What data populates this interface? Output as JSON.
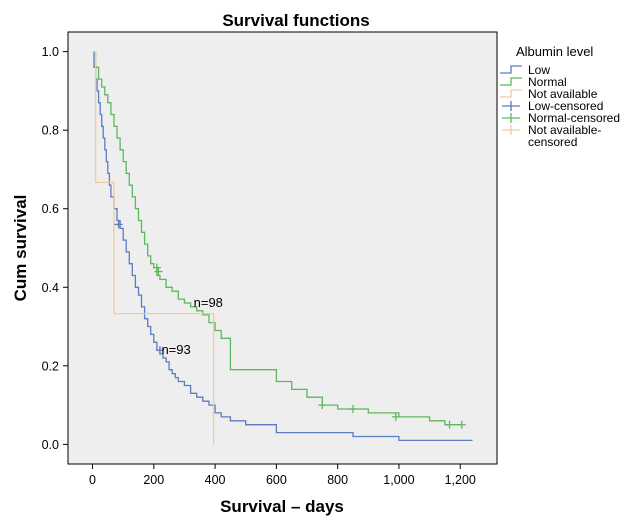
{
  "chart_data": {
    "type": "line",
    "title": "Survival functions",
    "xlabel": "Survival – days",
    "ylabel": "Cum survival",
    "xlim": [
      -80,
      1320
    ],
    "ylim": [
      -0.05,
      1.05
    ],
    "x_ticks": [
      0,
      200,
      400,
      600,
      800,
      1000,
      1200
    ],
    "x_tick_labels": [
      "0",
      "200",
      "400",
      "600",
      "800",
      "1,000",
      "1,200"
    ],
    "y_ticks": [
      0.0,
      0.2,
      0.4,
      0.6,
      0.8,
      1.0
    ],
    "y_tick_labels": [
      "0.0",
      "0.2",
      "0.4",
      "0.6",
      "0.8",
      "1.0"
    ],
    "grid": false,
    "background": "#eeeeee",
    "legend": {
      "title": "Albumin level",
      "placement": "right",
      "entries": [
        {
          "label": "Low",
          "color": "#5b7dc0",
          "marker": "step"
        },
        {
          "label": "Normal",
          "color": "#5cb85c",
          "marker": "step"
        },
        {
          "label": "Not available",
          "color": "#f2c9a0",
          "marker": "step"
        },
        {
          "label": "Low-censored",
          "color": "#5b7dc0",
          "marker": "plus"
        },
        {
          "label": "Normal-censored",
          "color": "#5cb85c",
          "marker": "plus"
        },
        {
          "label": "Not available-\ncensored",
          "color": "#f2c9a0",
          "marker": "plus"
        }
      ]
    },
    "series": [
      {
        "name": "Low",
        "color": "#5b7dc0",
        "x": [
          0,
          5,
          10,
          15,
          20,
          25,
          30,
          35,
          40,
          45,
          50,
          55,
          60,
          70,
          80,
          90,
          100,
          110,
          120,
          130,
          140,
          150,
          160,
          170,
          180,
          190,
          200,
          210,
          220,
          230,
          240,
          250,
          260,
          270,
          280,
          300,
          320,
          340,
          360,
          380,
          400,
          420,
          450,
          500,
          550,
          600,
          700,
          800,
          850,
          900,
          950,
          1000,
          1100,
          1200,
          1240
        ],
        "y": [
          1.0,
          0.96,
          0.93,
          0.9,
          0.87,
          0.84,
          0.81,
          0.78,
          0.75,
          0.72,
          0.69,
          0.66,
          0.63,
          0.6,
          0.57,
          0.55,
          0.52,
          0.49,
          0.46,
          0.43,
          0.4,
          0.38,
          0.35,
          0.32,
          0.3,
          0.28,
          0.26,
          0.24,
          0.23,
          0.22,
          0.21,
          0.19,
          0.18,
          0.17,
          0.16,
          0.15,
          0.13,
          0.12,
          0.11,
          0.1,
          0.08,
          0.07,
          0.06,
          0.05,
          0.05,
          0.03,
          0.03,
          0.03,
          0.02,
          0.02,
          0.02,
          0.01,
          0.01,
          0.01,
          0.01
        ]
      },
      {
        "name": "Normal",
        "color": "#5cb85c",
        "x": [
          0,
          10,
          20,
          30,
          40,
          50,
          60,
          70,
          80,
          90,
          100,
          110,
          120,
          130,
          140,
          150,
          160,
          170,
          180,
          190,
          200,
          210,
          220,
          240,
          260,
          280,
          300,
          320,
          340,
          360,
          380,
          400,
          420,
          450,
          500,
          550,
          600,
          650,
          700,
          750,
          800,
          850,
          900,
          1000,
          1100,
          1150,
          1200
        ],
        "y": [
          1.0,
          0.96,
          0.93,
          0.91,
          0.89,
          0.87,
          0.84,
          0.81,
          0.78,
          0.75,
          0.72,
          0.69,
          0.66,
          0.63,
          0.6,
          0.57,
          0.54,
          0.51,
          0.48,
          0.46,
          0.45,
          0.43,
          0.42,
          0.4,
          0.39,
          0.37,
          0.36,
          0.35,
          0.34,
          0.33,
          0.31,
          0.29,
          0.27,
          0.19,
          0.19,
          0.19,
          0.16,
          0.14,
          0.12,
          0.1,
          0.09,
          0.09,
          0.08,
          0.07,
          0.06,
          0.05,
          0.05
        ]
      },
      {
        "name": "Not available",
        "color": "#f2c9a0",
        "x": [
          0,
          10,
          70,
          390,
          395
        ],
        "y": [
          1.0,
          0.667,
          0.333,
          0.333,
          0.0
        ]
      }
    ],
    "censored": [
      {
        "series": "Low",
        "color": "#5b7dc0",
        "x": [
          85,
          220
        ],
        "y": [
          0.56,
          0.24
        ]
      },
      {
        "series": "Normal",
        "color": "#5cb85c",
        "x": [
          210,
          215,
          750,
          850,
          990,
          1165,
          1205
        ],
        "y": [
          0.45,
          0.44,
          0.1,
          0.09,
          0.07,
          0.05,
          0.05
        ]
      }
    ],
    "annotations": [
      {
        "text": "n=98",
        "x": 330,
        "y": 0.35
      },
      {
        "text": "n=93",
        "x": 225,
        "y": 0.23
      }
    ]
  }
}
